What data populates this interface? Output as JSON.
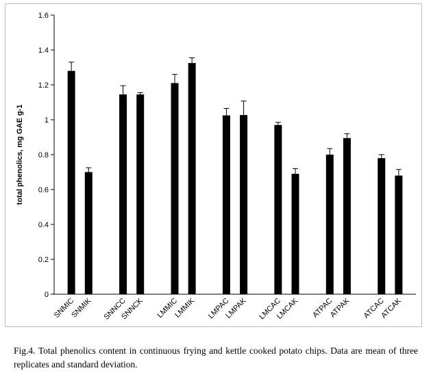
{
  "chart_data": {
    "type": "bar",
    "categories": [
      "SNMIC",
      "SNMIK",
      "SNNCC",
      "SNNCK",
      "LMMIC",
      "LMMIK",
      "LMPAC",
      "LMPAK",
      "LMCAC",
      "LMCAK",
      "ATPAC",
      "ATPAK",
      "ATCAC",
      "ATCAK"
    ],
    "values": [
      1.28,
      0.7,
      1.145,
      1.145,
      1.21,
      1.325,
      1.025,
      1.027,
      0.97,
      0.69,
      0.8,
      0.895,
      0.78,
      0.68
    ],
    "errors": [
      0.05,
      0.025,
      0.05,
      0.01,
      0.05,
      0.03,
      0.04,
      0.08,
      0.015,
      0.03,
      0.035,
      0.025,
      0.02,
      0.035
    ],
    "groups": [
      [
        "SNMIC",
        "SNMIK"
      ],
      [
        "SNNCC",
        "SNNCK"
      ],
      [
        "LMMIC",
        "LMMIK"
      ],
      [
        "LMPAC",
        "LMPAK"
      ],
      [
        "LMCAC",
        "LMCAK"
      ],
      [
        "ATPAC",
        "ATPAK"
      ],
      [
        "ATCAC",
        "ATCAK"
      ]
    ],
    "title": "",
    "xlabel": "",
    "ylabel": "total phenolics,  mg GAE g-1",
    "ylim": [
      0,
      1.6
    ],
    "yticks": [
      "0",
      "0.2",
      "0.4",
      "0.6",
      "0.8",
      "1",
      "1.2",
      "1.4",
      "1.6"
    ],
    "grid": false,
    "bar_color": "#000000"
  },
  "caption": "Fig.4. Total phenolics  content in continuous  frying  and kettle cooked potato chips. Data are mean  of three replicates  and standard  deviation."
}
